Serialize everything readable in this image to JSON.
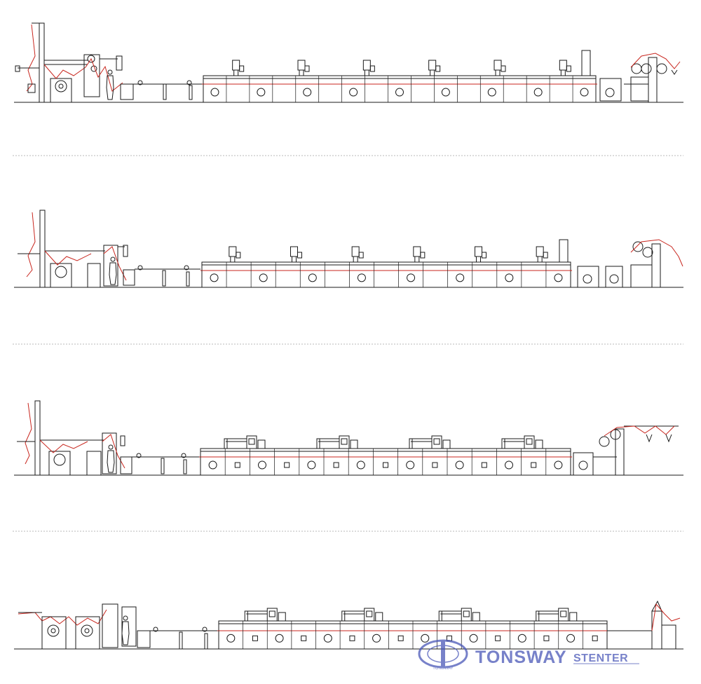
{
  "figure": {
    "rows": [
      {
        "id": "line-1",
        "dryer_panels": 17,
        "burners": 6
      },
      {
        "id": "line-2",
        "dryer_panels": 15,
        "burners": 6
      },
      {
        "id": "line-3",
        "dryer_panels": 15,
        "burners": 4
      },
      {
        "id": "line-4",
        "dryer_panels": 16,
        "burners": 4
      }
    ]
  },
  "watermark": {
    "emblem_text": "TONSWAY",
    "brand": "TONSWAY",
    "product": "STENTER",
    "color": "#4a58b8"
  },
  "colors": {
    "line": "#1a1a1a",
    "fabric_path": "#c8261e",
    "separator": "#b8b8b8"
  }
}
